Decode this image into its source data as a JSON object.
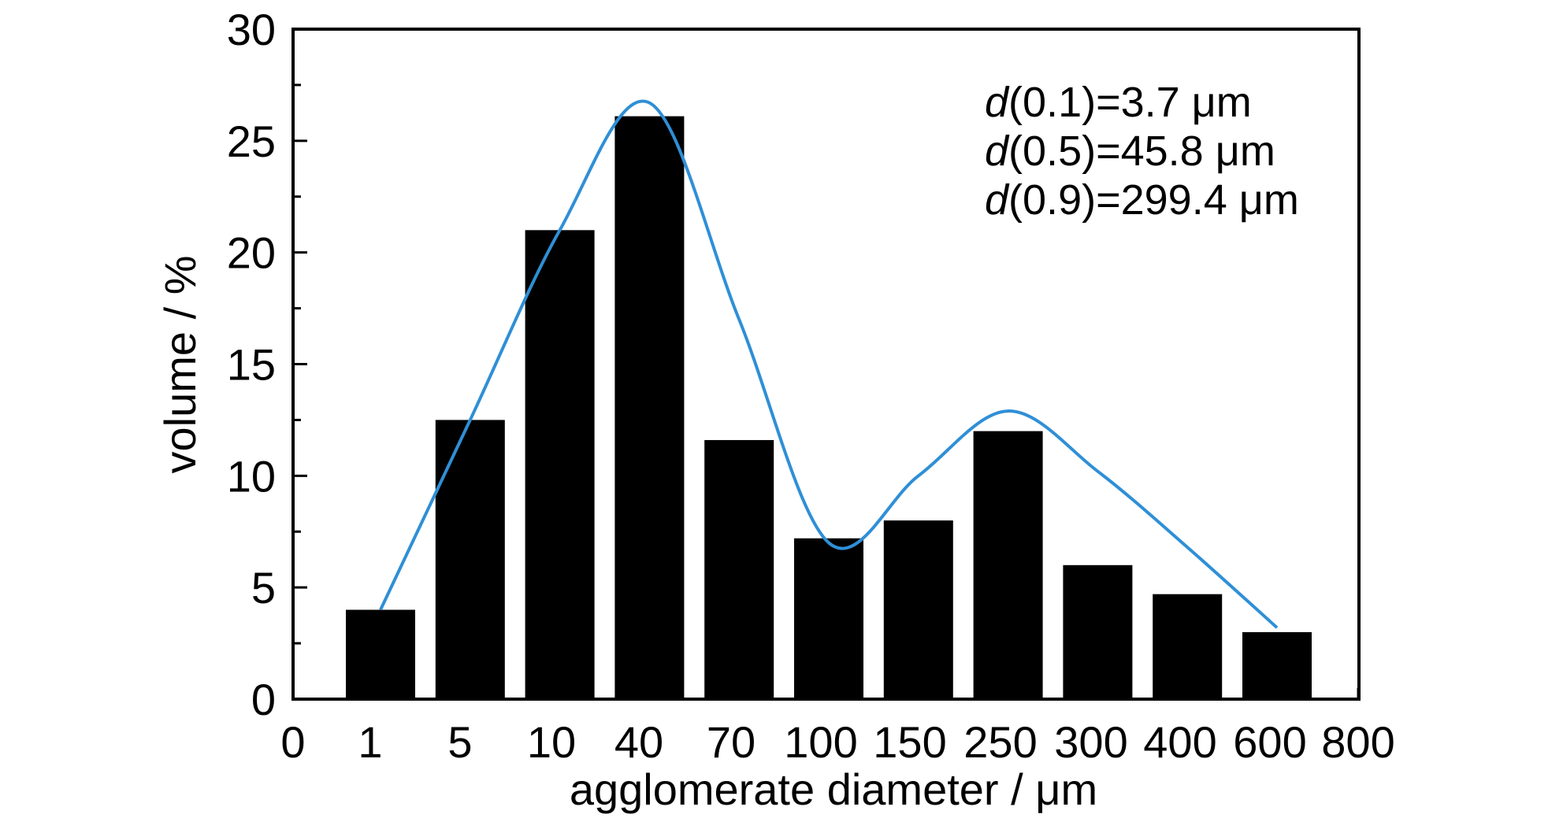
{
  "chart_data": {
    "type": "bar",
    "xlabel": "agglomerate diameter / μm",
    "ylabel": "volume / %",
    "ylim": [
      0,
      30
    ],
    "yticks": [
      "0",
      "5",
      "10",
      "15",
      "20",
      "25",
      "30"
    ],
    "xticks": [
      "0",
      "1",
      "5",
      "10",
      "40",
      "70",
      "100",
      "150",
      "250",
      "300",
      "400",
      "600",
      "800"
    ],
    "categories": [
      "1",
      "5",
      "10",
      "40",
      "70",
      "100",
      "150",
      "250",
      "300",
      "400",
      "600"
    ],
    "values": [
      4.0,
      12.5,
      21.0,
      26.1,
      11.6,
      7.2,
      8.0,
      12.0,
      6.0,
      4.7,
      3.0
    ],
    "bar_color": "#000000",
    "curve_color": "#2f8fd6",
    "curve": {
      "type": "line",
      "smooth": true,
      "x": [
        "1",
        "5",
        "10",
        "40",
        "70",
        "100",
        "150",
        "250",
        "300",
        "400",
        "600"
      ],
      "y": [
        4.0,
        12.5,
        21.0,
        26.7,
        17.0,
        7.0,
        10.0,
        12.9,
        10.2,
        6.8,
        3.2
      ]
    },
    "annotations": [
      {
        "italic": "d",
        "text": "(0.1)=3.7 μm"
      },
      {
        "italic": "d",
        "text": "(0.5)=45.8 μm"
      },
      {
        "italic": "d",
        "text": "(0.9)=299.4 μm"
      }
    ],
    "grid": false
  }
}
